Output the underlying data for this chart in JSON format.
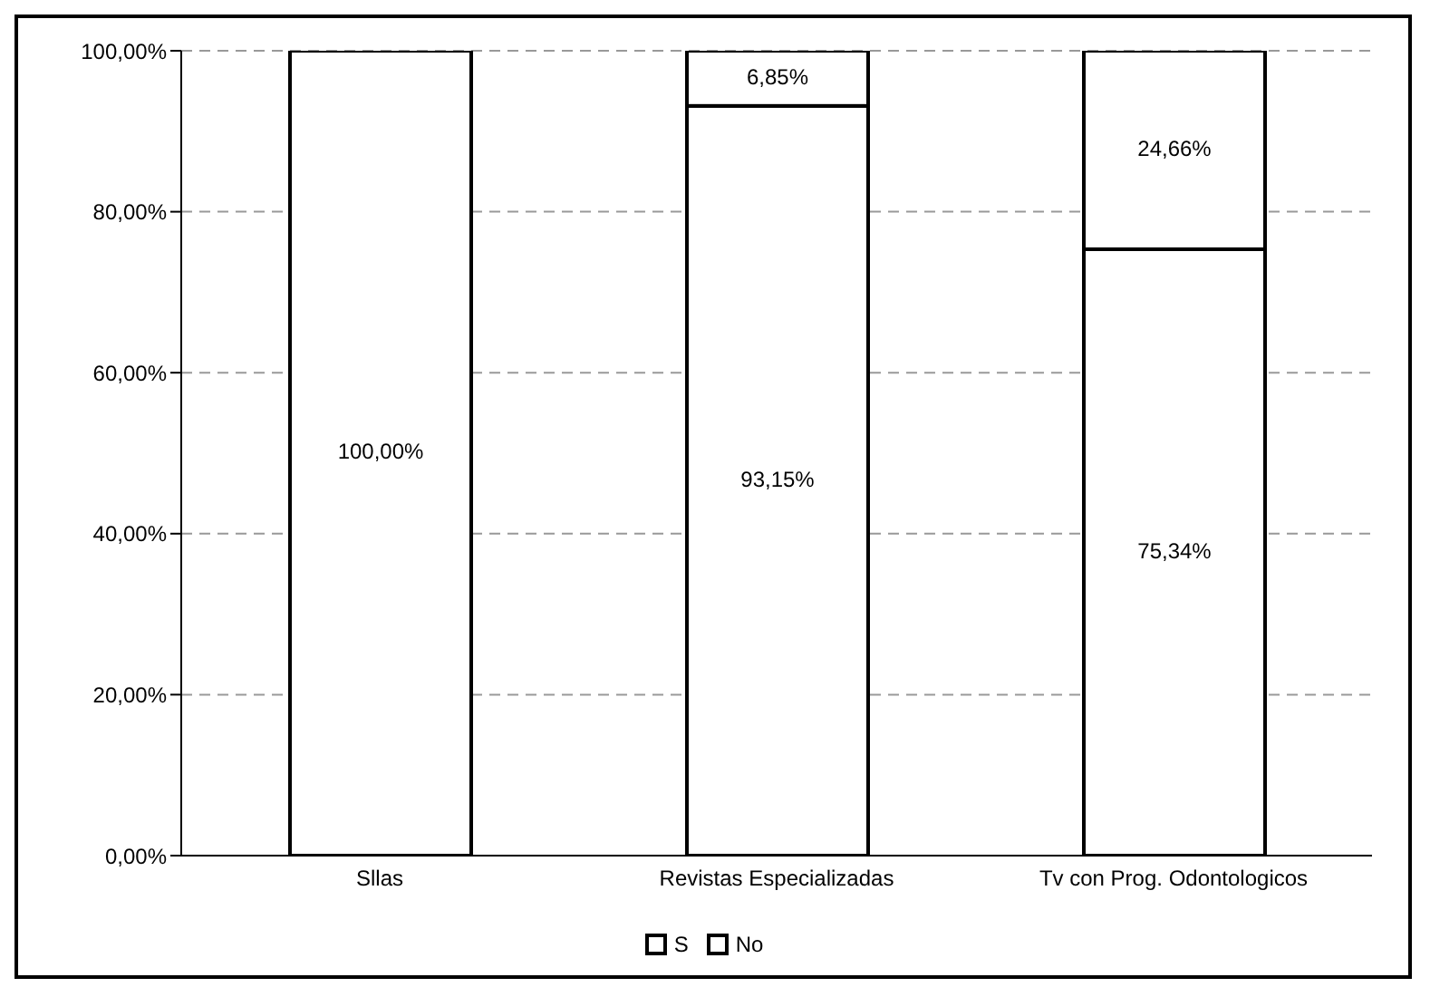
{
  "chart_data": {
    "type": "bar",
    "stacked": true,
    "categories": [
      "Sllas",
      "Revistas Especializadas",
      "Tv con Prog. Odontologicos"
    ],
    "series": [
      {
        "name": "S",
        "color": "#ffffff",
        "values": [
          100,
          93.15,
          75.34
        ],
        "value_labels": [
          "100,00%",
          "93,15%",
          "75,34%"
        ]
      },
      {
        "name": "No",
        "color": "#ffffff",
        "values": [
          0,
          6.85,
          24.66
        ],
        "value_labels": [
          null,
          "6,85%",
          "24,66%"
        ]
      }
    ],
    "ylim": [
      0,
      100
    ],
    "yticks": [
      {
        "value": 0,
        "label": "0,00%"
      },
      {
        "value": 20,
        "label": "20,00%"
      },
      {
        "value": 40,
        "label": "40,00%"
      },
      {
        "value": 60,
        "label": "60,00%"
      },
      {
        "value": 80,
        "label": "80,00%"
      },
      {
        "value": 100,
        "label": "100,00%"
      }
    ],
    "grid": "y",
    "legend": "bottom"
  }
}
